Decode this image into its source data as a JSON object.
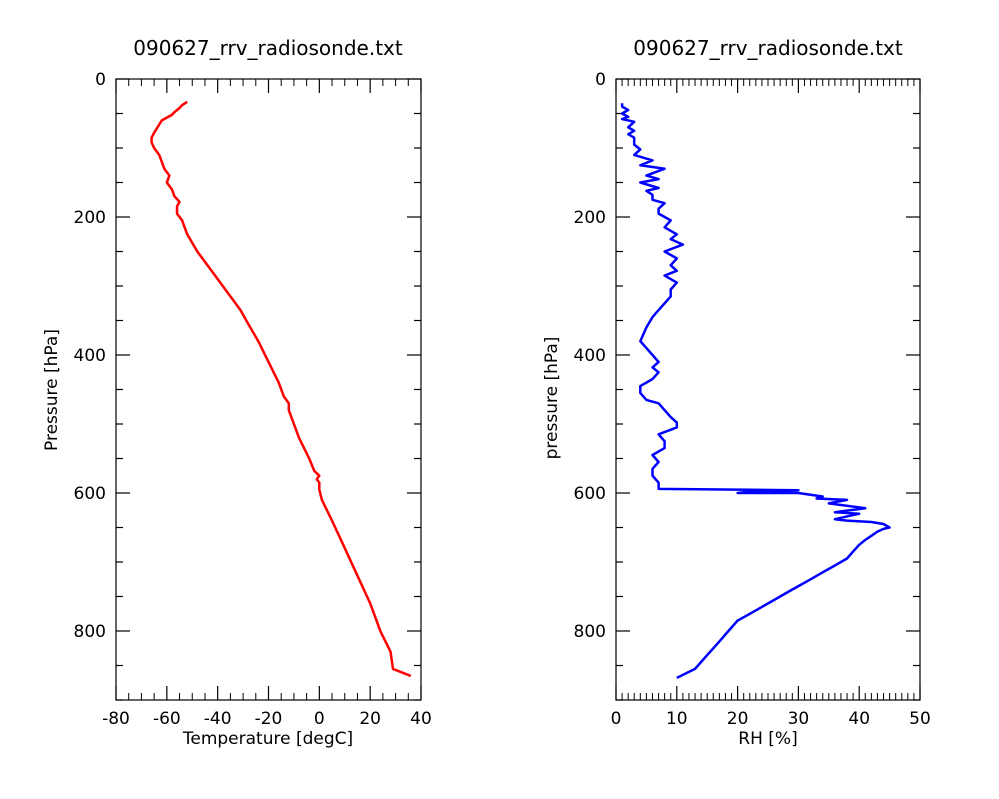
{
  "chart_data": [
    {
      "type": "line",
      "title": "090627_rrv_radiosonde.txt",
      "xlabel": "Temperature [degC]",
      "ylabel": "Pressure [hPa]",
      "xlim": [
        -80,
        40
      ],
      "ylim": [
        900,
        0
      ],
      "y_inverted": true,
      "grid": false,
      "x_ticks": [
        -80,
        -60,
        -40,
        -20,
        0,
        20,
        40
      ],
      "y_ticks": [
        0,
        200,
        400,
        600,
        800
      ],
      "line_color": "#ff0000",
      "series": [
        {
          "x": [
            36,
            29,
            28,
            24,
            22,
            20,
            15,
            10,
            5,
            1,
            0,
            0,
            -1,
            0,
            -2,
            -4,
            -8,
            -10,
            -12,
            -12,
            -14,
            -16,
            -20,
            -24,
            -28,
            -31,
            -34,
            -36,
            -40,
            -44,
            -48,
            -52,
            -54,
            -56,
            -56,
            -55,
            -57,
            -58,
            -60,
            -59,
            -61,
            -62,
            -63,
            -65,
            -66,
            -66,
            -65,
            -64,
            -63,
            -62,
            -60,
            -58,
            -57,
            -55,
            -54,
            -52
          ],
          "y": [
            865,
            855,
            830,
            800,
            780,
            760,
            720,
            680,
            640,
            610,
            595,
            585,
            580,
            575,
            568,
            550,
            520,
            500,
            480,
            470,
            460,
            440,
            410,
            380,
            355,
            335,
            320,
            310,
            290,
            270,
            250,
            225,
            205,
            195,
            185,
            178,
            170,
            160,
            150,
            140,
            130,
            120,
            110,
            100,
            92,
            85,
            78,
            72,
            66,
            60,
            56,
            52,
            48,
            42,
            38,
            33
          ]
        }
      ]
    },
    {
      "type": "line",
      "title": "090627_rrv_radiosonde.txt",
      "xlabel": "RH [%]",
      "ylabel": "pressure [hPa]",
      "xlim": [
        0,
        50
      ],
      "ylim": [
        900,
        0
      ],
      "y_inverted": true,
      "grid": false,
      "x_ticks": [
        0,
        10,
        20,
        30,
        40,
        50
      ],
      "y_ticks": [
        0,
        200,
        400,
        600,
        800
      ],
      "line_color": "#0000ff",
      "series": [
        {
          "x": [
            10,
            13,
            14,
            15,
            16,
            17,
            18,
            19,
            20,
            22,
            24,
            26,
            28,
            30,
            32,
            34,
            36,
            38,
            39,
            40,
            41,
            42,
            43,
            44,
            45,
            44,
            42,
            38,
            36,
            40,
            36,
            41,
            35,
            38,
            33,
            34,
            30,
            20,
            22,
            30,
            7,
            7,
            6,
            6,
            7,
            6,
            8,
            8,
            7,
            10,
            10,
            9,
            7,
            5,
            4,
            4,
            6,
            7,
            6,
            7,
            6,
            5,
            4,
            5,
            6,
            7,
            8,
            9,
            9,
            10,
            8,
            10,
            9,
            10,
            8,
            11,
            9,
            10,
            8,
            9,
            7,
            7,
            8,
            6,
            6,
            5,
            7,
            4,
            7,
            5,
            8,
            4,
            6,
            3,
            4,
            3,
            3,
            2,
            3,
            2,
            3,
            1,
            2,
            1,
            2,
            1,
            1
          ],
          "y": [
            868,
            855,
            845,
            835,
            825,
            815,
            805,
            795,
            785,
            775,
            765,
            755,
            745,
            735,
            725,
            715,
            705,
            695,
            685,
            675,
            668,
            662,
            656,
            652,
            650,
            645,
            642,
            640,
            638,
            630,
            628,
            622,
            615,
            610,
            608,
            605,
            600,
            600,
            598,
            596,
            594,
            585,
            575,
            565,
            555,
            545,
            535,
            525,
            515,
            505,
            498,
            490,
            470,
            465,
            455,
            445,
            435,
            425,
            418,
            410,
            400,
            390,
            380,
            360,
            345,
            335,
            325,
            315,
            305,
            295,
            285,
            278,
            270,
            260,
            250,
            240,
            232,
            225,
            215,
            205,
            195,
            188,
            180,
            175,
            168,
            162,
            158,
            150,
            145,
            140,
            130,
            125,
            118,
            110,
            102,
            95,
            85,
            80,
            75,
            70,
            62,
            58,
            55,
            50,
            45,
            40,
            35
          ]
        }
      ]
    }
  ]
}
